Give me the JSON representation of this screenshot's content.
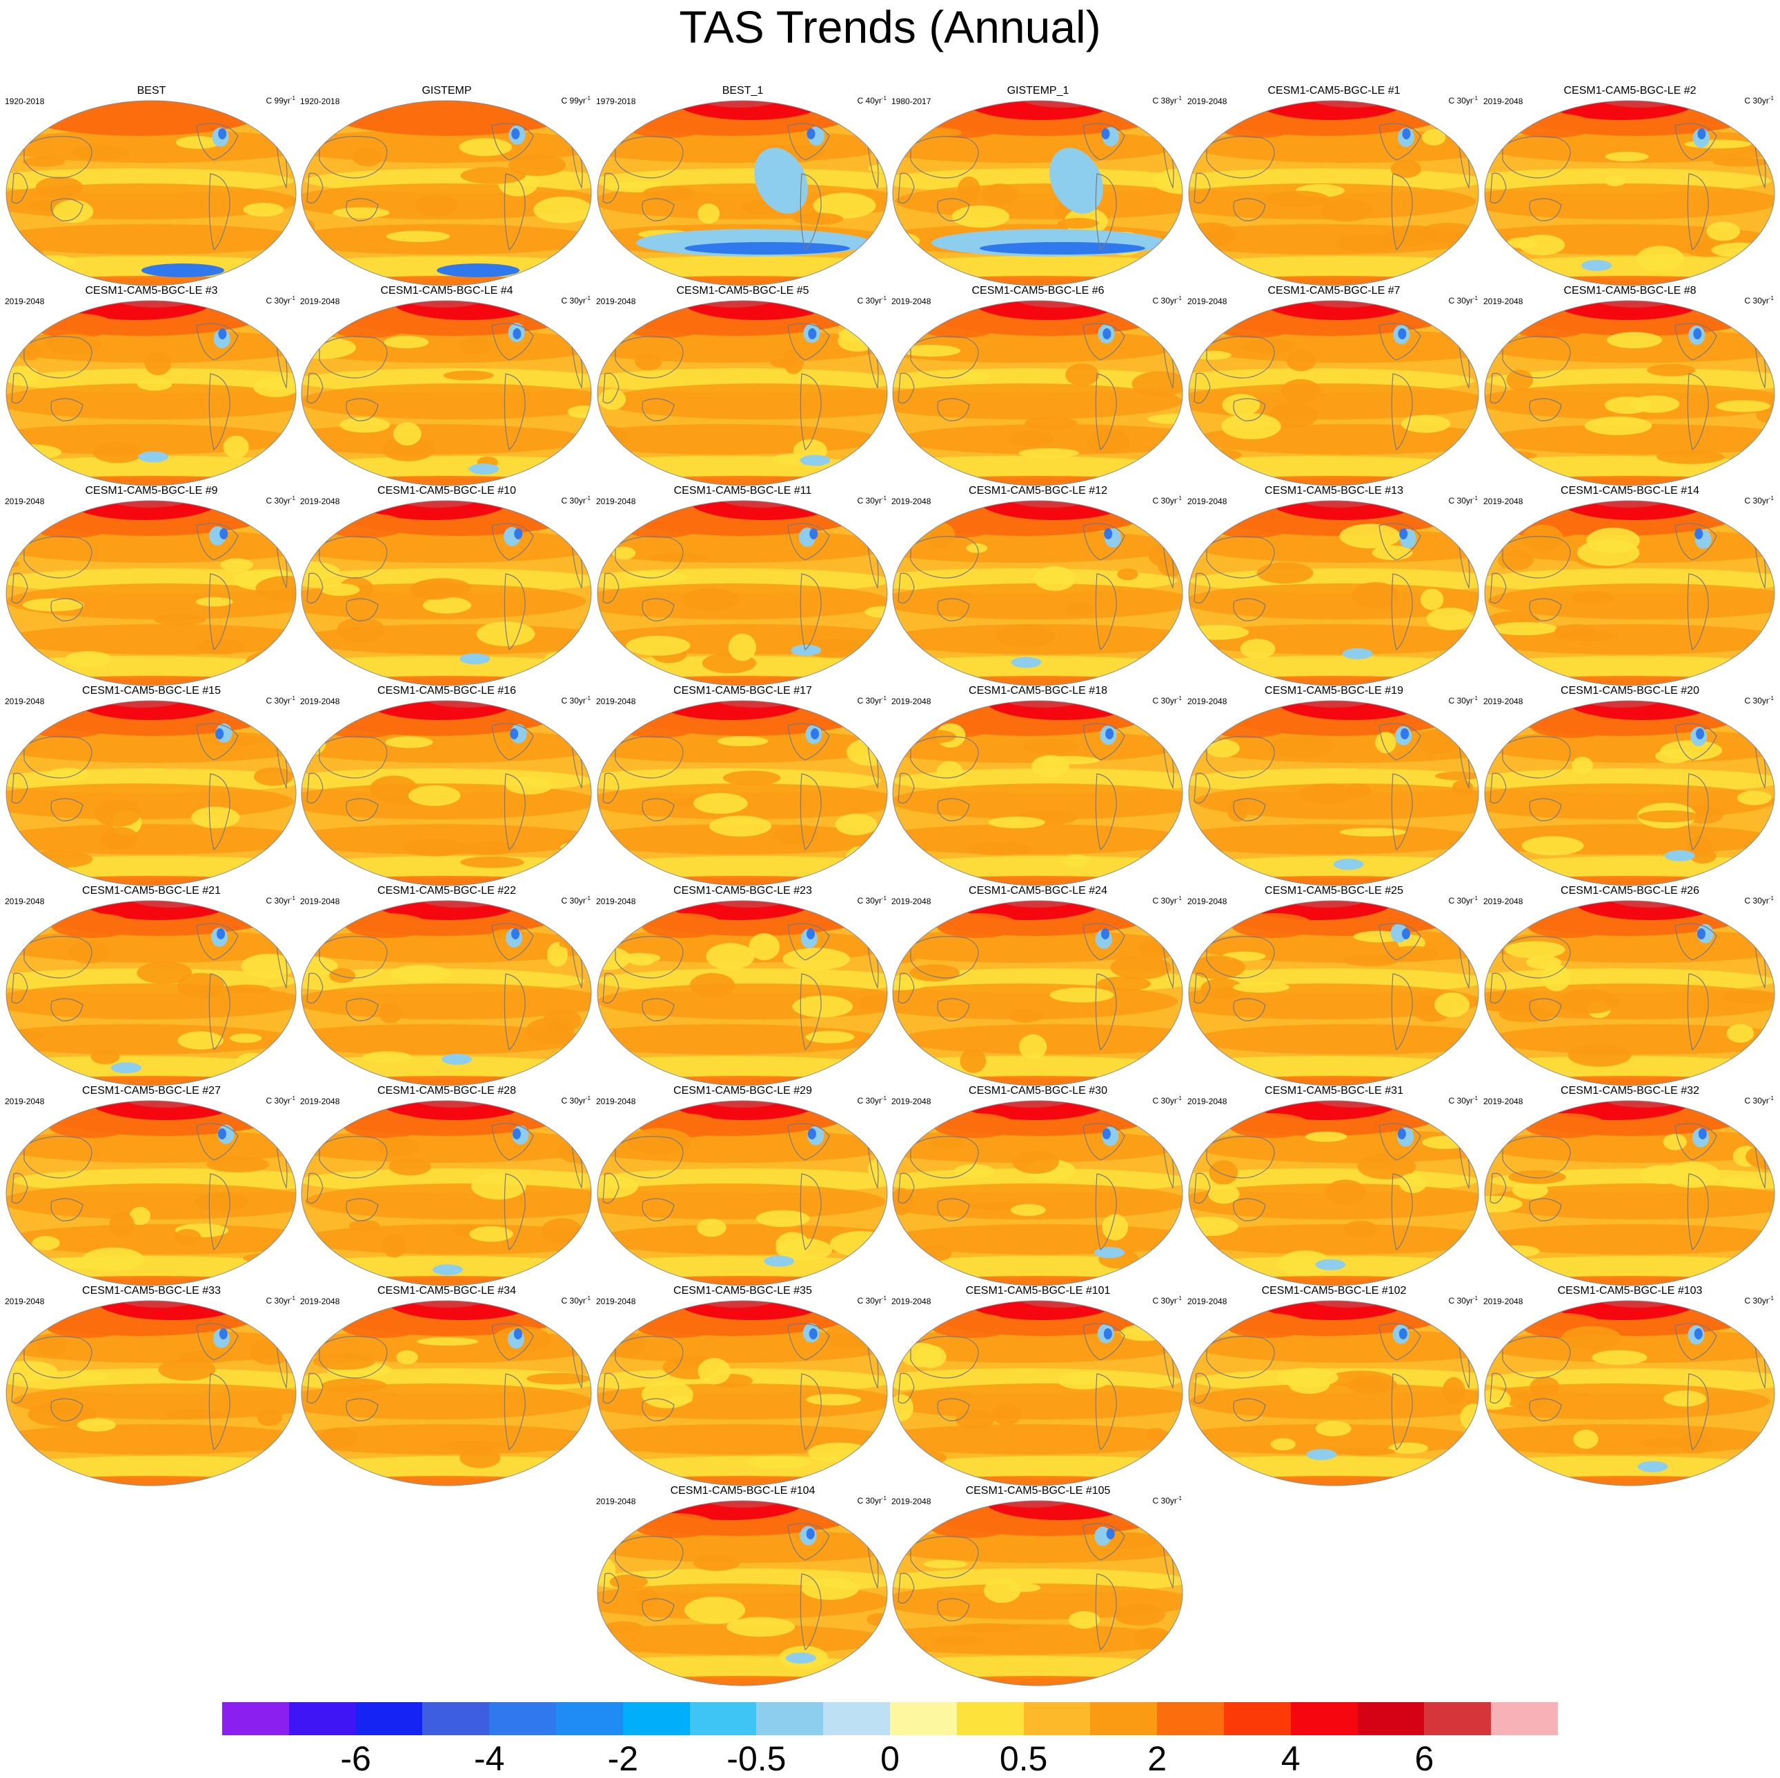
{
  "title": "TAS Trends (Annual)",
  "panels": [
    {
      "title": "BEST",
      "period": "1920-2018",
      "units": "C 99yr",
      "variant": "obs"
    },
    {
      "title": "GISTEMP",
      "period": "1920-2018",
      "units": "C 99yr",
      "variant": "obs"
    },
    {
      "title": "BEST_1",
      "period": "1979-2018",
      "units": "C 40yr",
      "variant": "obs_recent"
    },
    {
      "title": "GISTEMP_1",
      "period": "1980-2017",
      "units": "C 38yr",
      "variant": "obs_recent"
    },
    {
      "title": "CESM1-CAM5-BGC-LE #1",
      "period": "2019-2048",
      "units": "C 30yr",
      "variant": "model"
    },
    {
      "title": "CESM1-CAM5-BGC-LE #2",
      "period": "2019-2048",
      "units": "C 30yr",
      "variant": "model"
    },
    {
      "title": "CESM1-CAM5-BGC-LE #3",
      "period": "2019-2048",
      "units": "C 30yr",
      "variant": "model"
    },
    {
      "title": "CESM1-CAM5-BGC-LE #4",
      "period": "2019-2048",
      "units": "C 30yr",
      "variant": "model"
    },
    {
      "title": "CESM1-CAM5-BGC-LE #5",
      "period": "2019-2048",
      "units": "C 30yr",
      "variant": "model"
    },
    {
      "title": "CESM1-CAM5-BGC-LE #6",
      "period": "2019-2048",
      "units": "C 30yr",
      "variant": "model"
    },
    {
      "title": "CESM1-CAM5-BGC-LE #7",
      "period": "2019-2048",
      "units": "C 30yr",
      "variant": "model"
    },
    {
      "title": "CESM1-CAM5-BGC-LE #8",
      "period": "2019-2048",
      "units": "C 30yr",
      "variant": "model"
    },
    {
      "title": "CESM1-CAM5-BGC-LE #9",
      "period": "2019-2048",
      "units": "C 30yr",
      "variant": "model"
    },
    {
      "title": "CESM1-CAM5-BGC-LE #10",
      "period": "2019-2048",
      "units": "C 30yr",
      "variant": "model"
    },
    {
      "title": "CESM1-CAM5-BGC-LE #11",
      "period": "2019-2048",
      "units": "C 30yr",
      "variant": "model"
    },
    {
      "title": "CESM1-CAM5-BGC-LE #12",
      "period": "2019-2048",
      "units": "C 30yr",
      "variant": "model"
    },
    {
      "title": "CESM1-CAM5-BGC-LE #13",
      "period": "2019-2048",
      "units": "C 30yr",
      "variant": "model"
    },
    {
      "title": "CESM1-CAM5-BGC-LE #14",
      "period": "2019-2048",
      "units": "C 30yr",
      "variant": "model"
    },
    {
      "title": "CESM1-CAM5-BGC-LE #15",
      "period": "2019-2048",
      "units": "C 30yr",
      "variant": "model"
    },
    {
      "title": "CESM1-CAM5-BGC-LE #16",
      "period": "2019-2048",
      "units": "C 30yr",
      "variant": "model"
    },
    {
      "title": "CESM1-CAM5-BGC-LE #17",
      "period": "2019-2048",
      "units": "C 30yr",
      "variant": "model"
    },
    {
      "title": "CESM1-CAM5-BGC-LE #18",
      "period": "2019-2048",
      "units": "C 30yr",
      "variant": "model"
    },
    {
      "title": "CESM1-CAM5-BGC-LE #19",
      "period": "2019-2048",
      "units": "C 30yr",
      "variant": "model"
    },
    {
      "title": "CESM1-CAM5-BGC-LE #20",
      "period": "2019-2048",
      "units": "C 30yr",
      "variant": "model"
    },
    {
      "title": "CESM1-CAM5-BGC-LE #21",
      "period": "2019-2048",
      "units": "C 30yr",
      "variant": "model"
    },
    {
      "title": "CESM1-CAM5-BGC-LE #22",
      "period": "2019-2048",
      "units": "C 30yr",
      "variant": "model"
    },
    {
      "title": "CESM1-CAM5-BGC-LE #23",
      "period": "2019-2048",
      "units": "C 30yr",
      "variant": "model"
    },
    {
      "title": "CESM1-CAM5-BGC-LE #24",
      "period": "2019-2048",
      "units": "C 30yr",
      "variant": "model"
    },
    {
      "title": "CESM1-CAM5-BGC-LE #25",
      "period": "2019-2048",
      "units": "C 30yr",
      "variant": "model"
    },
    {
      "title": "CESM1-CAM5-BGC-LE #26",
      "period": "2019-2048",
      "units": "C 30yr",
      "variant": "model"
    },
    {
      "title": "CESM1-CAM5-BGC-LE #27",
      "period": "2019-2048",
      "units": "C 30yr",
      "variant": "model"
    },
    {
      "title": "CESM1-CAM5-BGC-LE #28",
      "period": "2019-2048",
      "units": "C 30yr",
      "variant": "model"
    },
    {
      "title": "CESM1-CAM5-BGC-LE #29",
      "period": "2019-2048",
      "units": "C 30yr",
      "variant": "model"
    },
    {
      "title": "CESM1-CAM5-BGC-LE #30",
      "period": "2019-2048",
      "units": "C 30yr",
      "variant": "model"
    },
    {
      "title": "CESM1-CAM5-BGC-LE #31",
      "period": "2019-2048",
      "units": "C 30yr",
      "variant": "model"
    },
    {
      "title": "CESM1-CAM5-BGC-LE #32",
      "period": "2019-2048",
      "units": "C 30yr",
      "variant": "model"
    },
    {
      "title": "CESM1-CAM5-BGC-LE #33",
      "period": "2019-2048",
      "units": "C 30yr",
      "variant": "model"
    },
    {
      "title": "CESM1-CAM5-BGC-LE #34",
      "period": "2019-2048",
      "units": "C 30yr",
      "variant": "model"
    },
    {
      "title": "CESM1-CAM5-BGC-LE #35",
      "period": "2019-2048",
      "units": "C 30yr",
      "variant": "model"
    },
    {
      "title": "CESM1-CAM5-BGC-LE #101",
      "period": "2019-2048",
      "units": "C 30yr",
      "variant": "model"
    },
    {
      "title": "CESM1-CAM5-BGC-LE #102",
      "period": "2019-2048",
      "units": "C 30yr",
      "variant": "model"
    },
    {
      "title": "CESM1-CAM5-BGC-LE #103",
      "period": "2019-2048",
      "units": "C 30yr",
      "variant": "model"
    },
    {
      "title": "CESM1-CAM5-BGC-LE #104",
      "period": "2019-2048",
      "units": "C 30yr",
      "variant": "model"
    },
    {
      "title": "CESM1-CAM5-BGC-LE #105",
      "period": "2019-2048",
      "units": "C 30yr",
      "variant": "model"
    }
  ],
  "units_superscript": "-1",
  "colorbar": {
    "colors": [
      "#8a1fef",
      "#3f14f5",
      "#1524f2",
      "#3d5ee0",
      "#2f78ee",
      "#1f8cf6",
      "#00aef9",
      "#3ec4f5",
      "#8dcdee",
      "#bde0f4",
      "#fdf8a0",
      "#fde23c",
      "#fdb92a",
      "#fb9a13",
      "#fb6d0d",
      "#fc3a07",
      "#f6060f",
      "#d40214",
      "#d6353a",
      "#f7b2b7"
    ],
    "labels": [
      "-6",
      "-4",
      "-2",
      "-0.5",
      "0",
      "0.5",
      "2",
      "4",
      "6"
    ]
  },
  "map_colors": {
    "land_outline": "#7a7a7a",
    "border": "#8a8a8a",
    "base": "#fdb92a",
    "warm": "#fb9a13",
    "hot": "#fb6d0d",
    "arctic": "#f6060f",
    "arctic_core": "#d6353a",
    "light": "#fde23c",
    "cool": "#8dcdee",
    "cold": "#2f78ee"
  }
}
